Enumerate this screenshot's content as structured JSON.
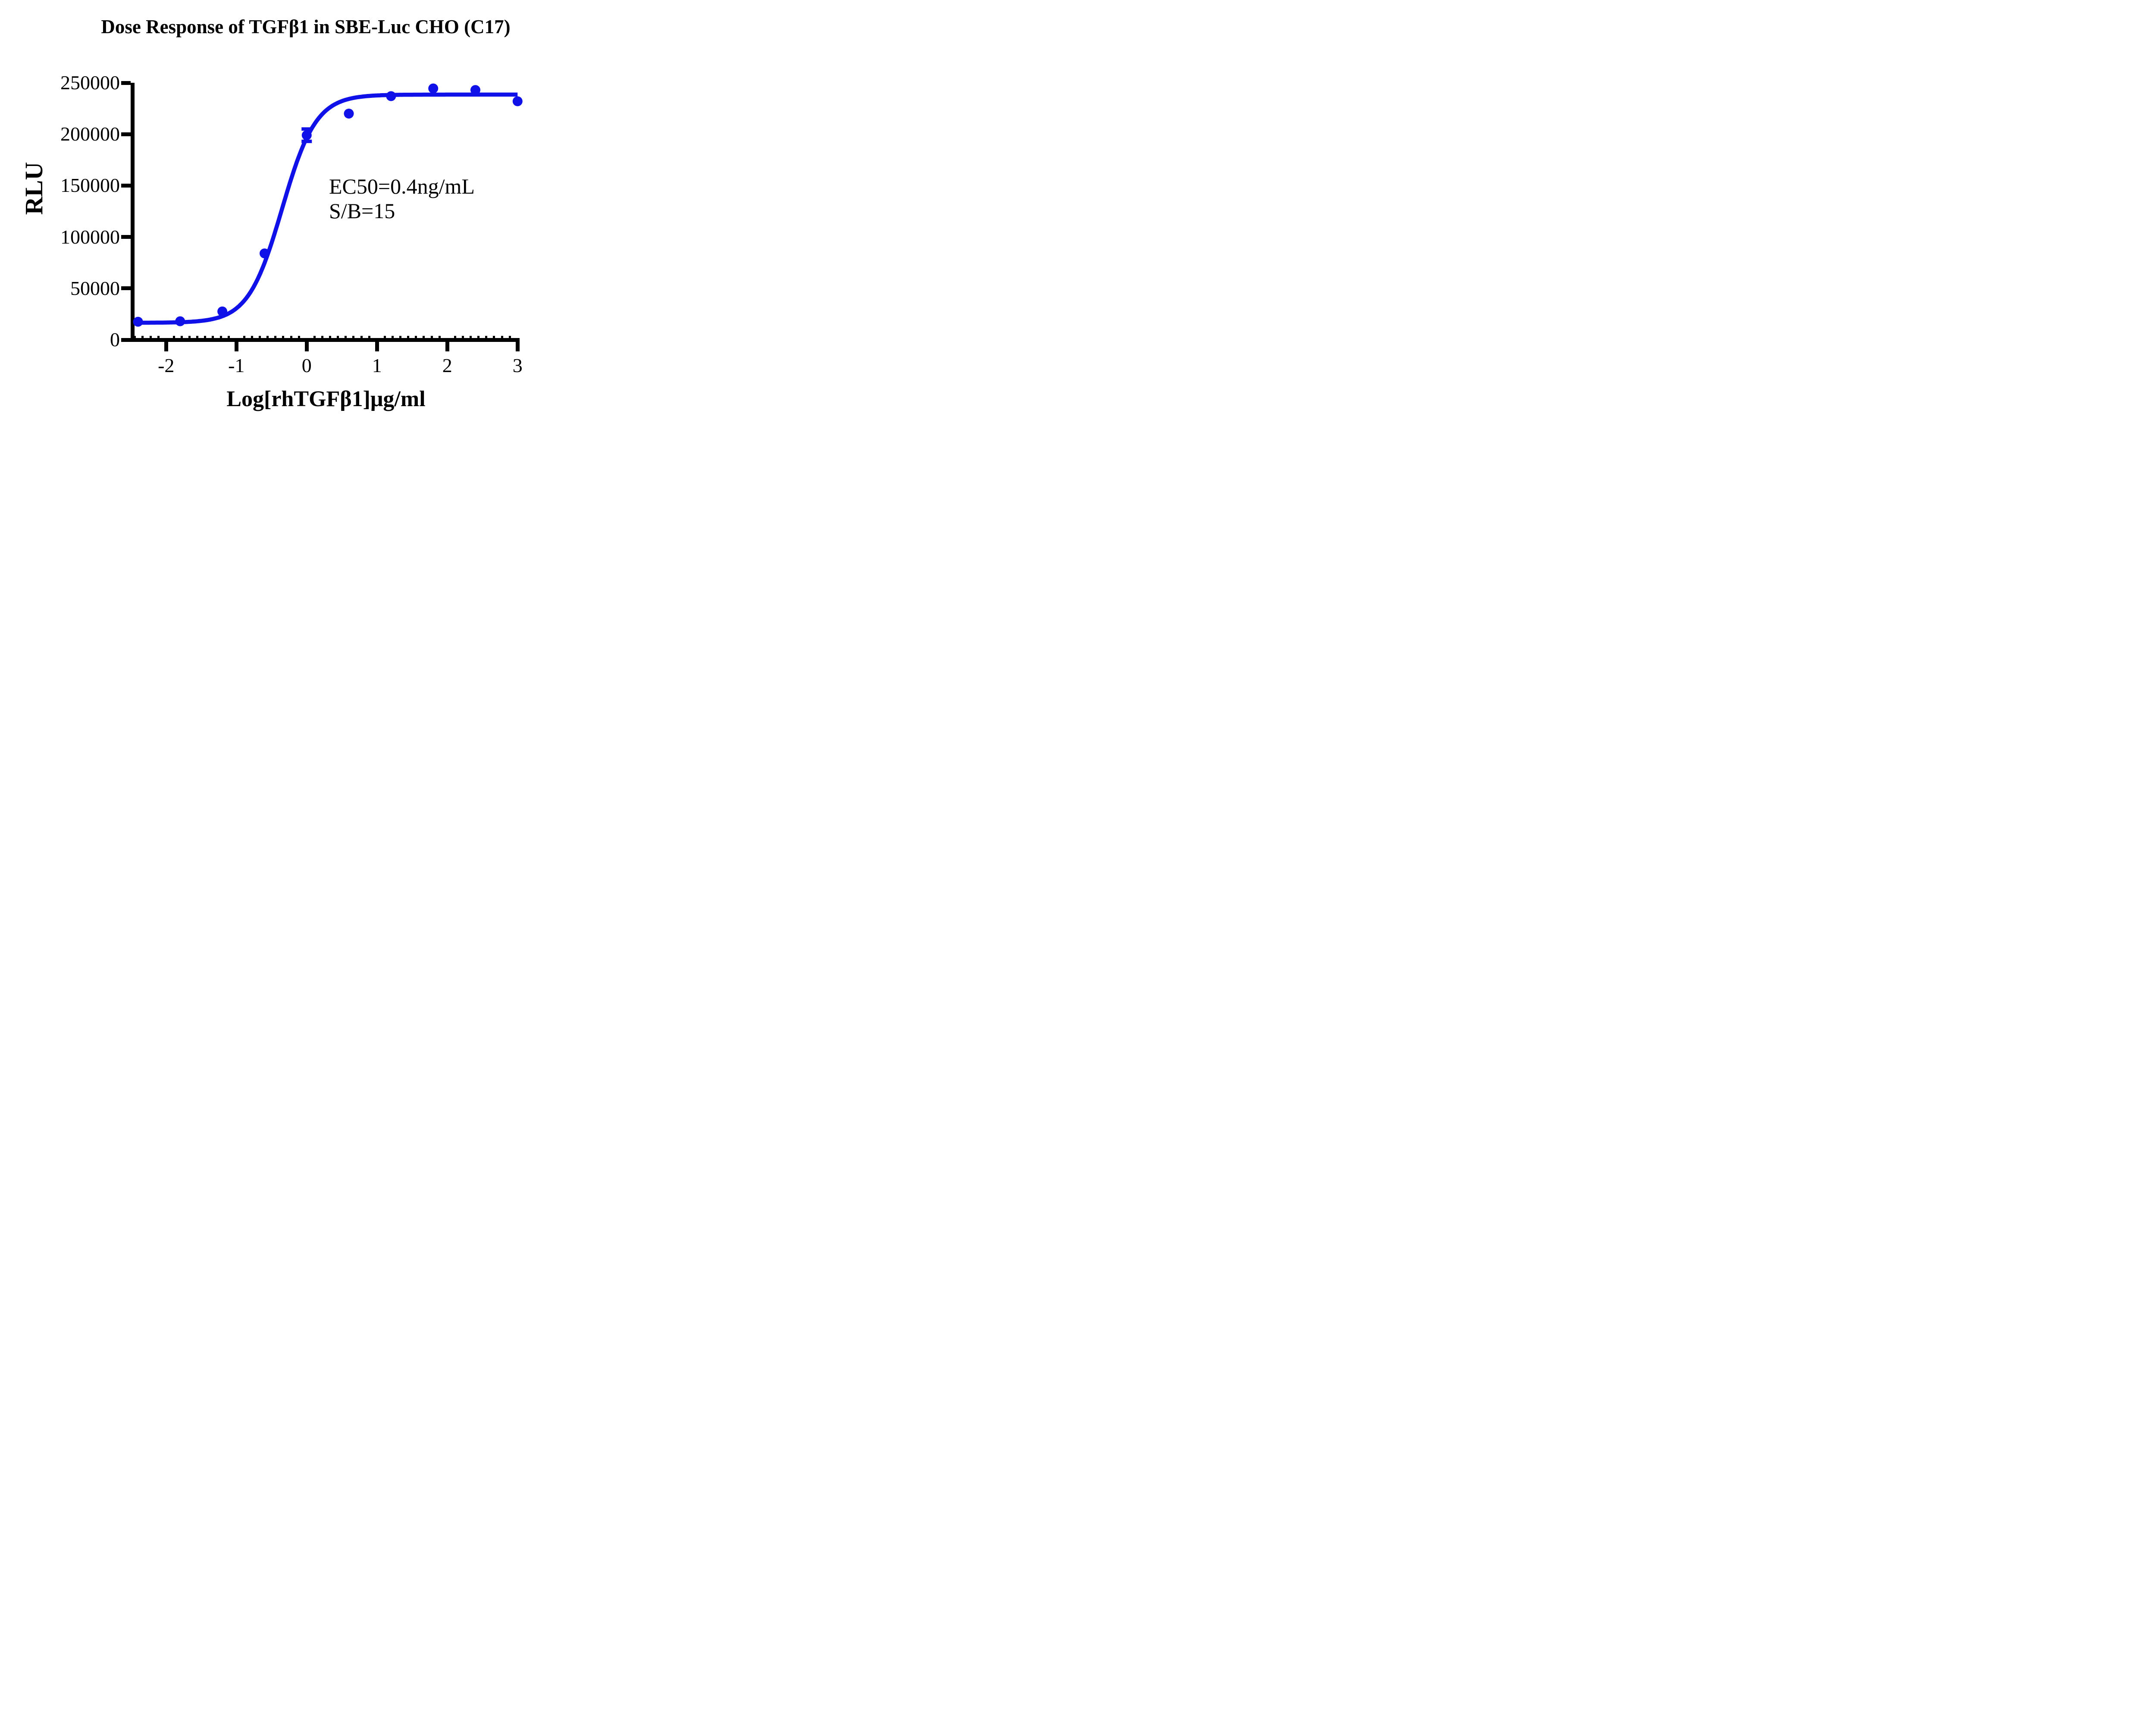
{
  "chart_data": {
    "type": "scatter",
    "title": "Dose Response of TGFβ1 in SBE-Luc CHO (C17)",
    "xlabel": "Log[rhTGFβ1]μg/ml",
    "ylabel": "RLU",
    "xlim": [
      -2.48,
      3
    ],
    "ylim": [
      0,
      250000
    ],
    "xticks": [
      -2,
      -1,
      0,
      1,
      2,
      3
    ],
    "yticks": [
      0,
      50000,
      100000,
      150000,
      200000,
      250000
    ],
    "minor_tick_interval_x": 0.1111,
    "grid": false,
    "legend": null,
    "x": [
      -2.4,
      -1.8,
      -1.2,
      -0.6,
      0,
      0.6,
      1.2,
      1.8,
      2.4,
      3.0
    ],
    "y": [
      17500,
      18000,
      27500,
      84000,
      199000,
      220000,
      237000,
      244500,
      243000,
      232000
    ],
    "error_bars": [
      {
        "x": 0,
        "y": 199000,
        "plus": 6000,
        "minus": 6000
      }
    ],
    "fit_curve": {
      "model": "4PL-sigmoid",
      "bottom": 16500,
      "top": 238500,
      "logEC50": -0.35,
      "hillslope": 1.8
    },
    "annotations": {
      "line1": "EC50=0.4ng/mL",
      "line2": "S/B=15"
    },
    "colors": {
      "series": "#1010e8",
      "axis": "#000000",
      "text": "#000000",
      "background": "#ffffff"
    }
  }
}
